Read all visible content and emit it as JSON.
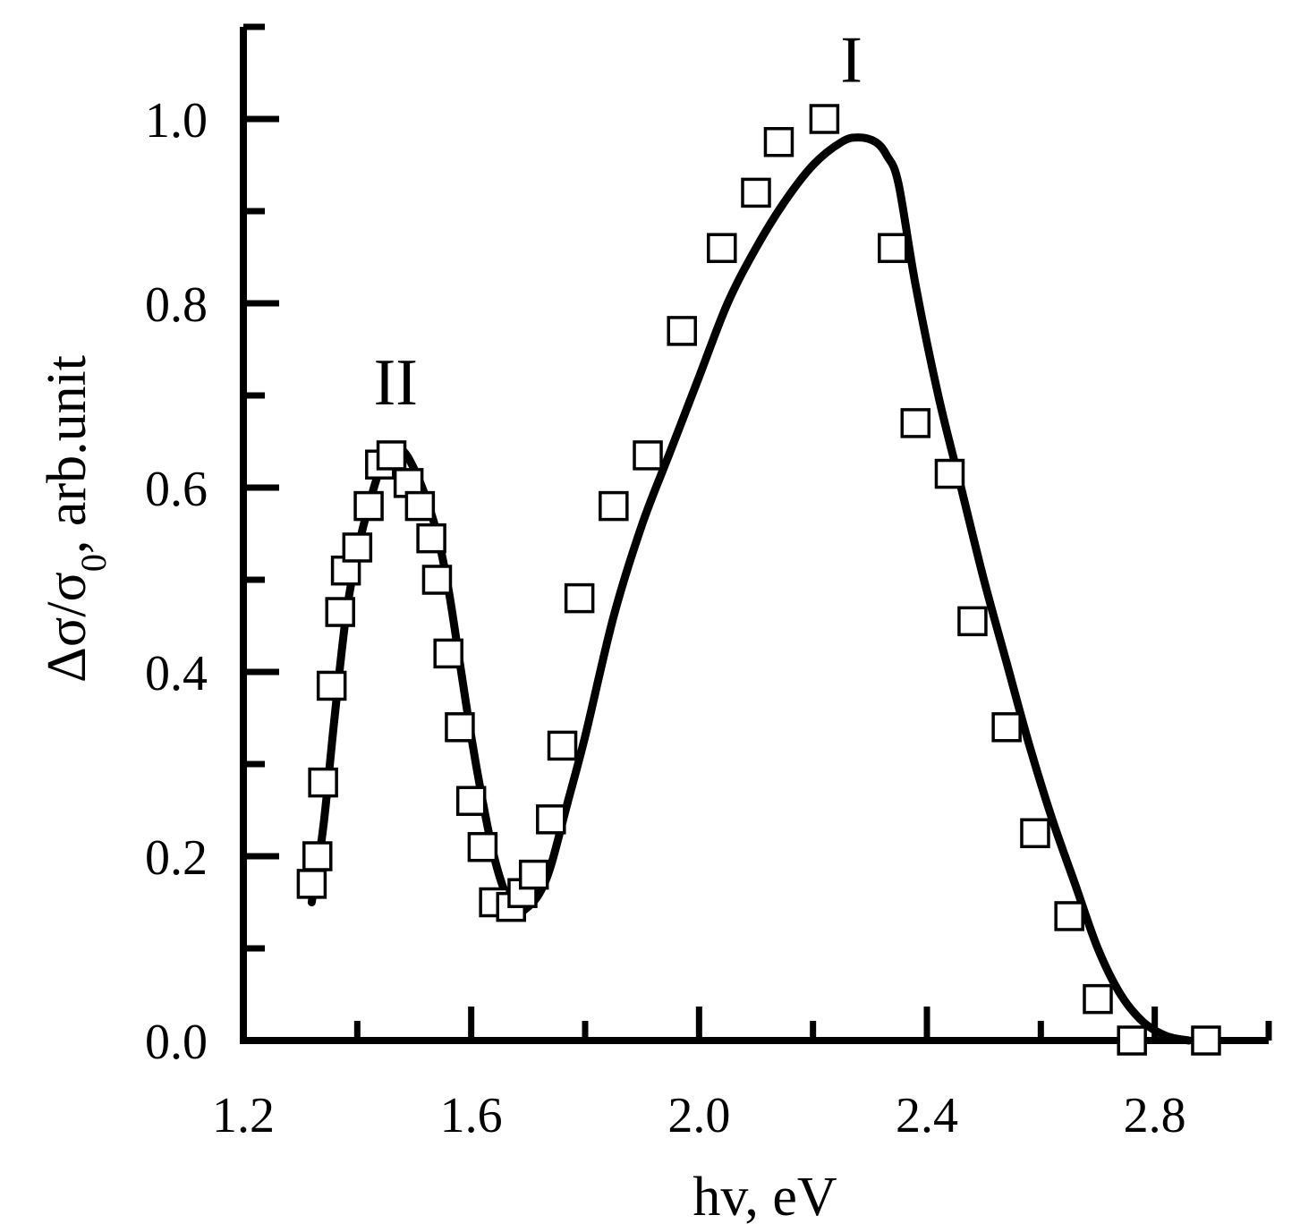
{
  "chart_data": {
    "type": "scatter",
    "title": "",
    "xlabel": "hv, eV",
    "ylabel": {
      "prefix": "Δσ/σ",
      "subscript": "0",
      "suffix": ", arb.unit"
    },
    "xlim": [
      1.2,
      3.0
    ],
    "ylim": [
      0.0,
      1.0
    ],
    "x_ticks": [
      "1.2",
      "1.6",
      "2.0",
      "2.4",
      "2.8"
    ],
    "y_ticks": [
      "0.0",
      "0.2",
      "0.4",
      "0.6",
      "0.8",
      "1.0"
    ],
    "grid": false,
    "legend": "none",
    "annotations": [
      {
        "text": "II",
        "x": 1.48,
        "y": 0.7
      },
      {
        "text": "I",
        "x": 2.28,
        "y": 1.05
      }
    ],
    "series": [
      {
        "marker": "open-square",
        "x": [
          1.32,
          1.33,
          1.34,
          1.355,
          1.37,
          1.38,
          1.4,
          1.42,
          1.44,
          1.46,
          1.49,
          1.51,
          1.53,
          1.54,
          1.56,
          1.58,
          1.6,
          1.62,
          1.64,
          1.67,
          1.69,
          1.71,
          1.74,
          1.76,
          1.79,
          1.85,
          1.91,
          1.97,
          2.04,
          2.1,
          2.14,
          2.22,
          2.34,
          2.38,
          2.44,
          2.48,
          2.54,
          2.59,
          2.65,
          2.7,
          2.76,
          2.89
        ],
        "y": [
          0.17,
          0.2,
          0.28,
          0.385,
          0.465,
          0.51,
          0.535,
          0.58,
          0.625,
          0.635,
          0.605,
          0.58,
          0.545,
          0.5,
          0.42,
          0.34,
          0.26,
          0.21,
          0.15,
          0.145,
          0.16,
          0.18,
          0.24,
          0.32,
          0.48,
          0.58,
          0.635,
          0.77,
          0.86,
          0.92,
          0.975,
          1.0,
          0.86,
          0.67,
          0.615,
          0.455,
          0.34,
          0.225,
          0.135,
          0.045,
          0.0,
          0.0
        ]
      },
      {
        "style": "solid-line",
        "x": [
          1.32,
          1.34,
          1.36,
          1.38,
          1.4,
          1.42,
          1.44,
          1.46,
          1.48,
          1.5,
          1.52,
          1.54,
          1.56,
          1.58,
          1.6,
          1.62,
          1.64,
          1.66,
          1.68,
          1.7,
          1.72,
          1.74,
          1.77,
          1.8,
          1.85,
          1.9,
          1.95,
          2.0,
          2.05,
          2.1,
          2.15,
          2.2,
          2.25,
          2.28,
          2.31,
          2.33,
          2.35,
          2.38,
          2.42,
          2.46,
          2.5,
          2.54,
          2.58,
          2.62,
          2.66,
          2.7,
          2.74,
          2.78,
          2.82,
          2.86
        ],
        "y": [
          0.15,
          0.23,
          0.35,
          0.46,
          0.53,
          0.58,
          0.62,
          0.64,
          0.64,
          0.62,
          0.59,
          0.55,
          0.49,
          0.41,
          0.33,
          0.26,
          0.2,
          0.16,
          0.14,
          0.145,
          0.16,
          0.19,
          0.26,
          0.33,
          0.46,
          0.56,
          0.64,
          0.72,
          0.8,
          0.86,
          0.91,
          0.95,
          0.975,
          0.98,
          0.975,
          0.96,
          0.93,
          0.82,
          0.7,
          0.6,
          0.5,
          0.41,
          0.32,
          0.24,
          0.17,
          0.1,
          0.05,
          0.02,
          0.005,
          0.0
        ]
      }
    ]
  }
}
